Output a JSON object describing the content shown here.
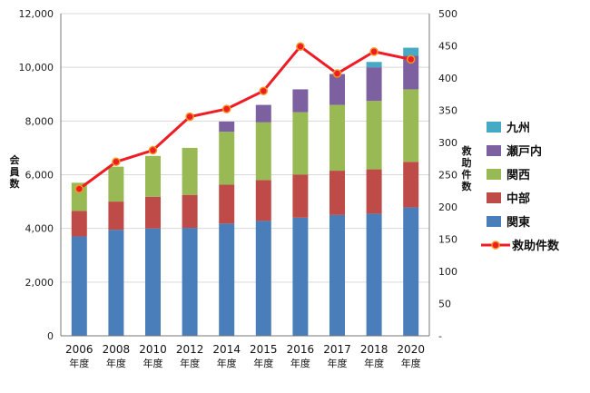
{
  "chart_data": {
    "type": "bar",
    "stacked": true,
    "categories": [
      "2006",
      "2008",
      "2010",
      "2012",
      "2014",
      "2015",
      "2016",
      "2017",
      "2018",
      "2020"
    ],
    "category_sublabel": "年度",
    "series": [
      {
        "name": "関東",
        "color": "#4a7ebb",
        "values": [
          3700,
          3950,
          4000,
          4020,
          4180,
          4280,
          4400,
          4500,
          4550,
          4780
        ]
      },
      {
        "name": "中部",
        "color": "#be4b48",
        "values": [
          950,
          1050,
          1180,
          1230,
          1450,
          1520,
          1600,
          1650,
          1650,
          1700
        ]
      },
      {
        "name": "関西",
        "color": "#98b954",
        "values": [
          1050,
          1300,
          1520,
          1750,
          1970,
          2150,
          2330,
          2450,
          2550,
          2700
        ]
      },
      {
        "name": "瀬戸内",
        "color": "#7d60a0",
        "values": [
          0,
          0,
          0,
          0,
          380,
          650,
          850,
          1150,
          1250,
          1250
        ]
      },
      {
        "name": "九州",
        "color": "#46aac5",
        "values": [
          0,
          0,
          0,
          0,
          0,
          0,
          0,
          0,
          200,
          300
        ]
      }
    ],
    "line_series": {
      "name": "救助件数",
      "color": "#ee1c24",
      "marker_color": "#f7941d",
      "axis": "right",
      "values": [
        228,
        270,
        288,
        340,
        352,
        380,
        449,
        407,
        441,
        429
      ]
    },
    "ylabel": "会員数",
    "ylabel_right": "救助件数",
    "ylim": [
      0,
      12000
    ],
    "ylim_right": [
      0,
      500
    ],
    "y_ticks": [
      "0",
      "2,000",
      "4,000",
      "6,000",
      "8,000",
      "10,000",
      "12,000"
    ],
    "y_ticks_right": [
      "-",
      "50",
      "100",
      "150",
      "200",
      "250",
      "300",
      "350",
      "400",
      "450",
      "500"
    ],
    "legend_order": [
      "九州",
      "瀬戸内",
      "関西",
      "中部",
      "関東",
      "救助件数"
    ],
    "legend_position": "right",
    "grid": true
  }
}
